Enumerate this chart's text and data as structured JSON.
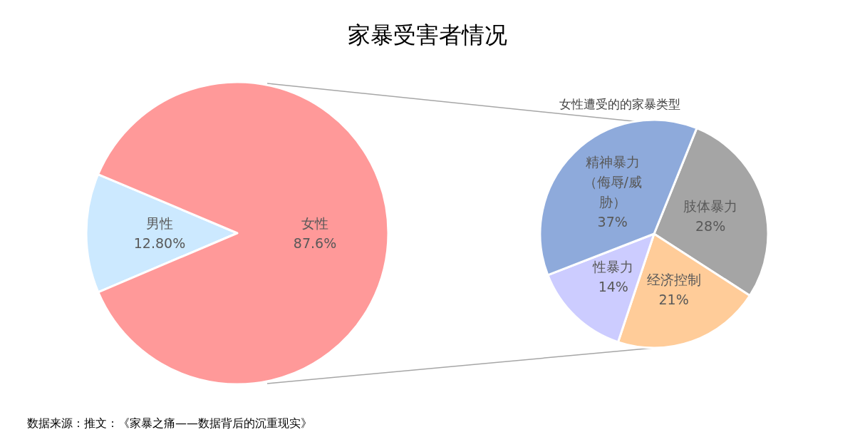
{
  "chart_data": [
    {
      "type": "pie",
      "title": "家暴受害者情况",
      "categories": [
        "男性",
        "女性"
      ],
      "values": [
        12.8,
        87.6
      ],
      "value_labels": [
        "12.80%",
        "87.6%"
      ],
      "colors": [
        "#cce9ff",
        "#ff9999"
      ],
      "annotations": [
        "数据来源：推文：《家暴之痛——数据背后的沉重现实》"
      ]
    },
    {
      "type": "pie",
      "title": "女性遭受的的家暴类型",
      "categories": [
        "肢体暴力",
        "经济控制",
        "性暴力",
        "精神暴力（侮辱/威胁）"
      ],
      "values": [
        28,
        21,
        14,
        37
      ],
      "value_labels": [
        "28%",
        "21%",
        "14%",
        "37%"
      ],
      "colors": [
        "#a5a5a5",
        "#ffcc99",
        "#ccccff",
        "#8eaadb"
      ]
    }
  ]
}
